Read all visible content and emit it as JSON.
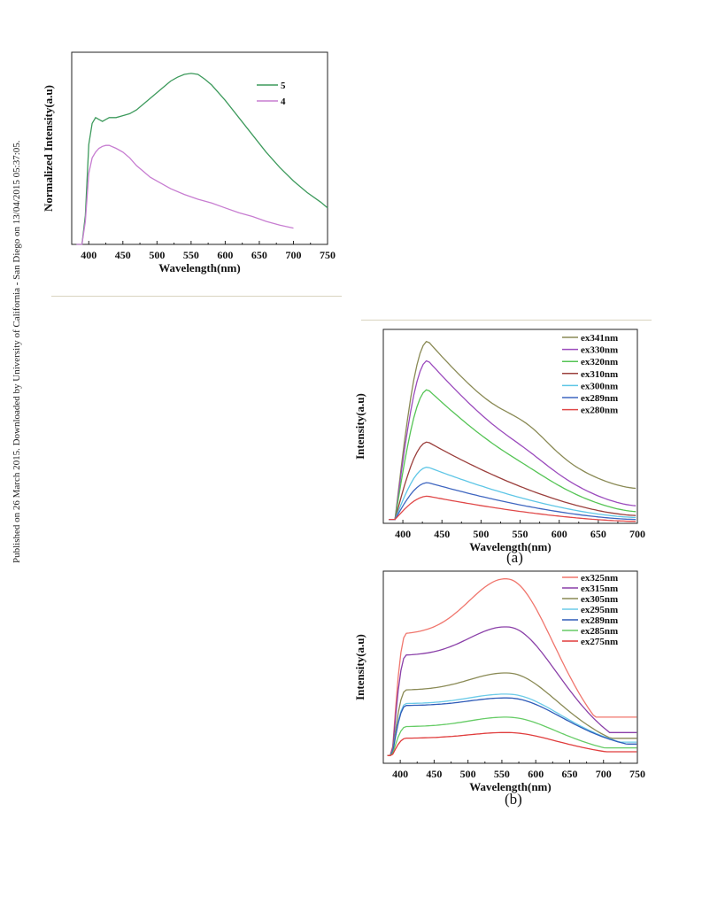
{
  "sidebar_text": "Published on 26 March 2015. Downloaded by University of California - San Diego on 13/04/2015 05:37:05.",
  "chart_data": [
    {
      "id": "top",
      "type": "line",
      "xlabel": "Wavelength(nm)",
      "ylabel": "Normalized Intensity(a.u)",
      "xlim": [
        375,
        750
      ],
      "ylim": [
        0,
        1.0
      ],
      "xticks": [
        400,
        450,
        500,
        550,
        600,
        650,
        700,
        750
      ],
      "legend_position": "top-right",
      "series": [
        {
          "name": "5",
          "color": "#3d9a5c",
          "x": [
            382,
            390,
            395,
            400,
            405,
            410,
            415,
            420,
            425,
            430,
            440,
            450,
            460,
            470,
            480,
            490,
            500,
            510,
            520,
            530,
            540,
            550,
            560,
            570,
            580,
            590,
            600,
            620,
            640,
            660,
            680,
            700,
            720,
            740,
            750
          ],
          "y": [
            0.0,
            0.0,
            0.15,
            0.52,
            0.63,
            0.66,
            0.65,
            0.64,
            0.65,
            0.66,
            0.66,
            0.67,
            0.68,
            0.7,
            0.73,
            0.76,
            0.79,
            0.82,
            0.85,
            0.87,
            0.885,
            0.89,
            0.885,
            0.86,
            0.83,
            0.79,
            0.75,
            0.66,
            0.57,
            0.48,
            0.4,
            0.33,
            0.27,
            0.22,
            0.19
          ]
        },
        {
          "name": "4",
          "color": "#c77dd1",
          "x": [
            382,
            390,
            395,
            400,
            405,
            410,
            415,
            420,
            425,
            430,
            440,
            450,
            460,
            470,
            480,
            490,
            500,
            520,
            540,
            560,
            580,
            600,
            620,
            640,
            660,
            680,
            700
          ],
          "y": [
            0.0,
            0.0,
            0.12,
            0.37,
            0.45,
            0.48,
            0.5,
            0.51,
            0.515,
            0.515,
            0.5,
            0.48,
            0.45,
            0.41,
            0.38,
            0.35,
            0.33,
            0.29,
            0.26,
            0.235,
            0.215,
            0.19,
            0.165,
            0.145,
            0.12,
            0.1,
            0.085
          ]
        }
      ]
    },
    {
      "id": "a",
      "caption": "(a)",
      "type": "line",
      "xlabel": "Wavelength(nm)",
      "ylabel": "Intensity(a.u)",
      "xlim": [
        375,
        700
      ],
      "ylim": [
        0,
        1.0
      ],
      "xticks": [
        400,
        450,
        500,
        550,
        600,
        650,
        700
      ],
      "legend_position": "top-right",
      "series": [
        {
          "name": "ex341nm",
          "color": "#8a8a55",
          "peak": 0.94,
          "tail": 0.18,
          "shoulder": 0.06
        },
        {
          "name": "ex330nm",
          "color": "#9b4bbd",
          "peak": 0.84,
          "tail": 0.09,
          "shoulder": 0.02
        },
        {
          "name": "ex320nm",
          "color": "#55c455",
          "peak": 0.69,
          "tail": 0.06,
          "shoulder": 0.01
        },
        {
          "name": "ex310nm",
          "color": "#9b3f3c",
          "peak": 0.42,
          "tail": 0.04,
          "shoulder": 0.0
        },
        {
          "name": "ex300nm",
          "color": "#5ec6e6",
          "peak": 0.29,
          "tail": 0.03,
          "shoulder": 0.0
        },
        {
          "name": "ex289nm",
          "color": "#3f66c0",
          "peak": 0.21,
          "tail": 0.02,
          "shoulder": 0.0
        },
        {
          "name": "ex280nm",
          "color": "#e04848",
          "peak": 0.14,
          "tail": 0.01,
          "shoulder": 0.0
        }
      ]
    },
    {
      "id": "b",
      "caption": "(b)",
      "type": "line",
      "xlabel": "Wavelength(nm)",
      "ylabel": "Intensity(a.u)",
      "xlim": [
        375,
        750
      ],
      "ylim": [
        0,
        1.0
      ],
      "xticks": [
        400,
        450,
        500,
        550,
        600,
        650,
        700,
        750
      ],
      "legend_position": "top-right",
      "series": [
        {
          "name": "ex325nm",
          "color": "#f0766d",
          "shoulder": 0.67,
          "peak": 0.96,
          "tail": 0.24
        },
        {
          "name": "ex315nm",
          "color": "#8a3fa8",
          "shoulder": 0.56,
          "peak": 0.71,
          "tail": 0.16
        },
        {
          "name": "ex305nm",
          "color": "#8a8a55",
          "shoulder": 0.38,
          "peak": 0.47,
          "tail": 0.13
        },
        {
          "name": "ex295nm",
          "color": "#6ccbe8",
          "shoulder": 0.31,
          "peak": 0.36,
          "tail": 0.11
        },
        {
          "name": "ex289nm",
          "color": "#2f5bb8",
          "shoulder": 0.3,
          "peak": 0.34,
          "tail": 0.1
        },
        {
          "name": "ex285nm",
          "color": "#66cc66",
          "shoulder": 0.19,
          "peak": 0.24,
          "tail": 0.08
        },
        {
          "name": "ex275nm",
          "color": "#e03c3c",
          "shoulder": 0.13,
          "peak": 0.16,
          "tail": 0.06
        }
      ]
    }
  ]
}
